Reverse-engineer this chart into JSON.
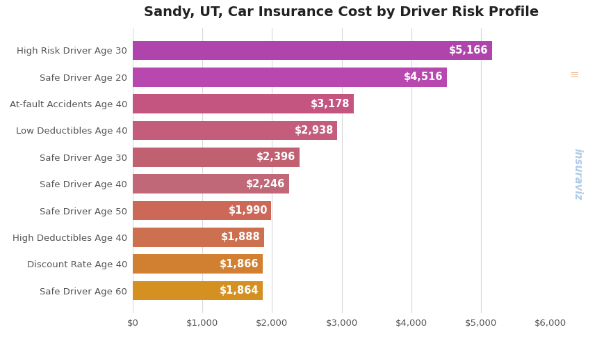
{
  "title": "Sandy, UT, Car Insurance Cost by Driver Risk Profile",
  "categories": [
    "High Risk Driver Age 30",
    "Safe Driver Age 20",
    "At-fault Accidents Age 40",
    "Low Deductibles Age 40",
    "Safe Driver Age 30",
    "Safe Driver Age 40",
    "Safe Driver Age 50",
    "High Deductibles Age 40",
    "Discount Rate Age 40",
    "Safe Driver Age 60"
  ],
  "values": [
    5166,
    4516,
    3178,
    2938,
    2396,
    2246,
    1990,
    1888,
    1866,
    1864
  ],
  "bar_colors": [
    "#b044ad",
    "#b848b0",
    "#c45580",
    "#c45c7c",
    "#c06070",
    "#c06878",
    "#cc6858",
    "#cc7050",
    "#d08030",
    "#d49020"
  ],
  "xlim": [
    0,
    6000
  ],
  "xticks": [
    0,
    1000,
    2000,
    3000,
    4000,
    5000,
    6000
  ],
  "xtick_labels": [
    "$0",
    "$1,000",
    "$2,000",
    "$3,000",
    "$4,000",
    "$5,000",
    "$6,000"
  ],
  "label_color": "#ffffff",
  "label_fontsize": 10.5,
  "title_fontsize": 14,
  "background_color": "#ffffff",
  "grid_color": "#d8d8d8",
  "bar_height": 0.72,
  "watermark_text": "insuraviz",
  "watermark_color": "#b0cce8",
  "watermark_bar_color": "#e8884a"
}
